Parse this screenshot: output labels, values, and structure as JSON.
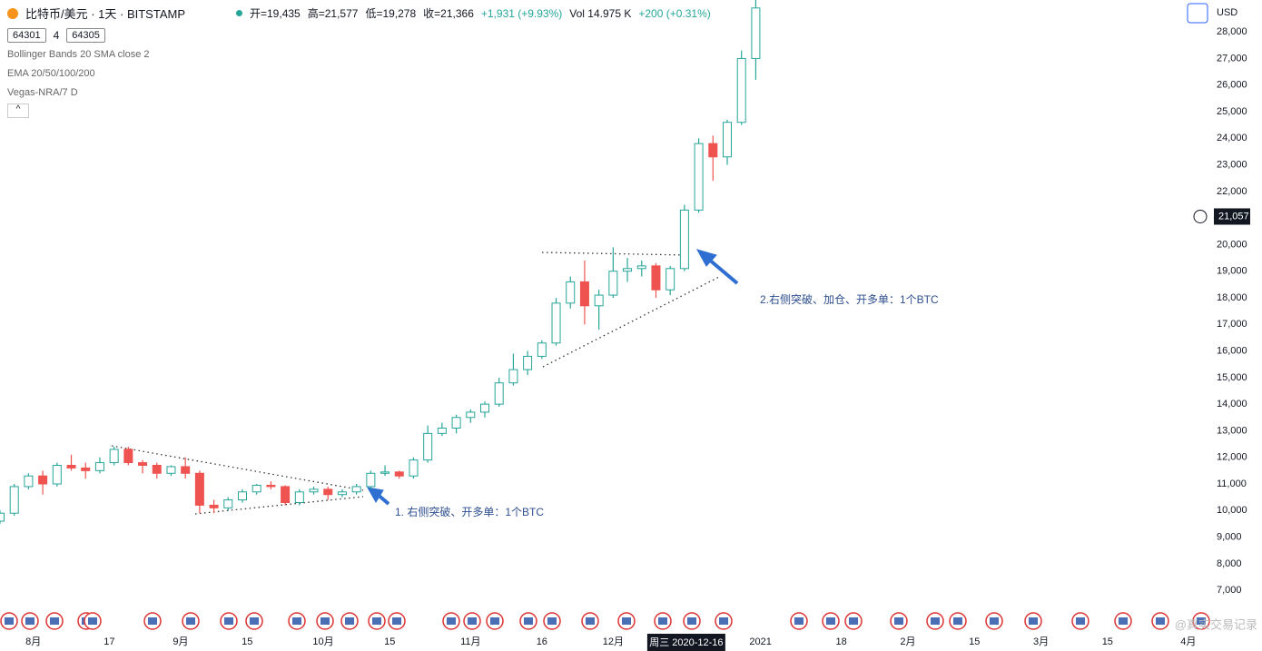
{
  "header": {
    "symbol": "比特币/美元 · 1天 · BITSTAMP",
    "ohlc": [
      "开=19,435",
      "高=21,577",
      "低=19,278",
      "收=21,366",
      "+1,931 (+9.93%)"
    ],
    "volume": "Vol 14.975 K",
    "volume_change": "+200 (+0.31%)",
    "boxes": [
      "64301",
      "4",
      "64305"
    ],
    "indicators": [
      "Bollinger Bands 20 SMA close 2",
      "EMA 20/50/100/200",
      "Vegas-NRA/7 D"
    ],
    "currency": "USD",
    "watermark": "@真实交易记录"
  },
  "chart_data": {
    "type": "candlestick",
    "x": [
      "2020-07-25",
      "2020-07-28",
      "2020-07-31",
      "2020-08-03",
      "2020-08-06",
      "2020-08-09",
      "2020-08-12",
      "2020-08-15",
      "2020-08-18",
      "2020-08-21",
      "2020-08-24",
      "2020-08-27",
      "2020-08-30",
      "2020-09-02",
      "2020-09-05",
      "2020-09-08",
      "2020-09-11",
      "2020-09-14",
      "2020-09-17",
      "2020-09-20",
      "2020-09-23",
      "2020-09-26",
      "2020-09-29",
      "2020-10-02",
      "2020-10-05",
      "2020-10-08",
      "2020-10-11",
      "2020-10-14",
      "2020-10-17",
      "2020-10-20",
      "2020-10-23",
      "2020-10-26",
      "2020-10-29",
      "2020-11-01",
      "2020-11-04",
      "2020-11-07",
      "2020-11-10",
      "2020-11-13",
      "2020-11-16",
      "2020-11-19",
      "2020-11-22",
      "2020-11-25",
      "2020-11-28",
      "2020-12-01",
      "2020-12-04",
      "2020-12-07",
      "2020-12-10",
      "2020-12-13",
      "2020-12-16",
      "2020-12-19",
      "2020-12-22",
      "2020-12-25",
      "2020-12-28",
      "2020-12-31"
    ],
    "open": [
      9600,
      9900,
      10900,
      11300,
      11000,
      11700,
      11600,
      11500,
      11800,
      12300,
      11800,
      11700,
      11400,
      11650,
      11400,
      10200,
      10100,
      10400,
      10700,
      10950,
      10900,
      10300,
      10700,
      10800,
      10600,
      10700,
      10900,
      11400,
      11450,
      11300,
      11900,
      12900,
      13100,
      13500,
      13700,
      14000,
      14800,
      15300,
      15800,
      16300,
      17800,
      18600,
      17700,
      18100,
      19000,
      19100,
      19200,
      18300,
      19100,
      21300,
      23800,
      23300,
      24600,
      27000
    ],
    "high": [
      10000,
      11000,
      11400,
      11500,
      11800,
      12100,
      11800,
      12000,
      12400,
      12400,
      11900,
      11800,
      11700,
      12000,
      11500,
      10400,
      10500,
      10800,
      11000,
      11100,
      10950,
      10800,
      10900,
      10900,
      10800,
      11000,
      11500,
      11700,
      11500,
      12000,
      13200,
      13300,
      13600,
      13800,
      14100,
      15000,
      15900,
      16000,
      16400,
      18000,
      18800,
      19400,
      18300,
      19900,
      19500,
      19400,
      19300,
      19200,
      21500,
      24000,
      24100,
      24700,
      27300,
      29300
    ],
    "low": [
      9500,
      9800,
      10800,
      10600,
      10900,
      11500,
      11200,
      11400,
      11700,
      11700,
      11400,
      11200,
      11300,
      11200,
      9900,
      9900,
      10000,
      10300,
      10600,
      10800,
      10200,
      10200,
      10600,
      10400,
      10500,
      10600,
      10800,
      11300,
      11200,
      11200,
      11800,
      12800,
      12900,
      13300,
      13500,
      13900,
      14700,
      15100,
      15700,
      16200,
      17600,
      17000,
      16800,
      18000,
      18600,
      18800,
      18000,
      18100,
      19000,
      21200,
      22400,
      23000,
      24500,
      26200
    ],
    "close": [
      9900,
      10900,
      11300,
      11000,
      11700,
      11600,
      11500,
      11800,
      12300,
      11800,
      11700,
      11400,
      11650,
      11400,
      10200,
      10100,
      10400,
      10700,
      10950,
      10900,
      10300,
      10700,
      10800,
      10600,
      10700,
      10900,
      11400,
      11450,
      11300,
      11900,
      12900,
      13100,
      13500,
      13700,
      14000,
      14800,
      15300,
      15800,
      16300,
      17800,
      18600,
      17700,
      18100,
      19000,
      19100,
      19200,
      18300,
      19100,
      21300,
      23800,
      23300,
      24600,
      27000,
      28900
    ],
    "up_color": "#26a69a",
    "down_color": "#ef5350",
    "xlim": [
      "2020-07-25",
      "2021-04-06"
    ],
    "xticks": [
      {
        "value": "2020-08-01",
        "label": "8月"
      },
      {
        "value": "2020-08-17",
        "label": "17"
      },
      {
        "value": "2020-09-01",
        "label": "9月"
      },
      {
        "value": "2020-09-15",
        "label": "15"
      },
      {
        "value": "2020-10-01",
        "label": "10月"
      },
      {
        "value": "2020-10-15",
        "label": "15"
      },
      {
        "value": "2020-11-01",
        "label": "11月"
      },
      {
        "value": "2020-11-16",
        "label": "16"
      },
      {
        "value": "2020-12-01",
        "label": "12月"
      },
      {
        "value": "2021-01-01",
        "label": "2021"
      },
      {
        "value": "2021-01-18",
        "label": "18"
      },
      {
        "value": "2021-02-01",
        "label": "2月"
      },
      {
        "value": "2021-02-15",
        "label": "15"
      },
      {
        "value": "2021-03-01",
        "label": "3月"
      },
      {
        "value": "2021-03-15",
        "label": "15"
      },
      {
        "value": "2021-04-01",
        "label": "4月"
      }
    ],
    "ylim": [
      5400,
      29200
    ],
    "yticks": [
      {
        "value": 7000,
        "label": "7,000"
      },
      {
        "value": 8000,
        "label": "8,000"
      },
      {
        "value": 9000,
        "label": "9,000"
      },
      {
        "value": 10000,
        "label": "10,000"
      },
      {
        "value": 11000,
        "label": "11,000"
      },
      {
        "value": 12000,
        "label": "12,000"
      },
      {
        "value": 13000,
        "label": "13,000"
      },
      {
        "value": 14000,
        "label": "14,000"
      },
      {
        "value": 15000,
        "label": "15,000"
      },
      {
        "value": 16000,
        "label": "16,000"
      },
      {
        "value": 17000,
        "label": "17,000"
      },
      {
        "value": 18000,
        "label": "18,000"
      },
      {
        "value": 19000,
        "label": "19,000"
      },
      {
        "value": 20000,
        "label": "20,000"
      },
      {
        "value": 21000,
        "label": "21,000"
      },
      {
        "value": 22000,
        "label": "22,000"
      },
      {
        "value": 23000,
        "label": "23,000"
      },
      {
        "value": 24000,
        "label": "24,000"
      },
      {
        "value": 25000,
        "label": "25,000"
      },
      {
        "value": 26000,
        "label": "26,000"
      },
      {
        "value": 27000,
        "label": "27,000"
      },
      {
        "value": 28000,
        "label": "28,000"
      }
    ],
    "last_price": {
      "value": 21057,
      "label": "21,057"
    },
    "crosshair": {
      "value": "2020-12-16",
      "label": "周三 2020-12-16"
    },
    "annotations": [
      "1. 右侧突破、开多单：1个BTC",
      "2.右侧突破、加仓、开多单：1个BTC"
    ]
  }
}
